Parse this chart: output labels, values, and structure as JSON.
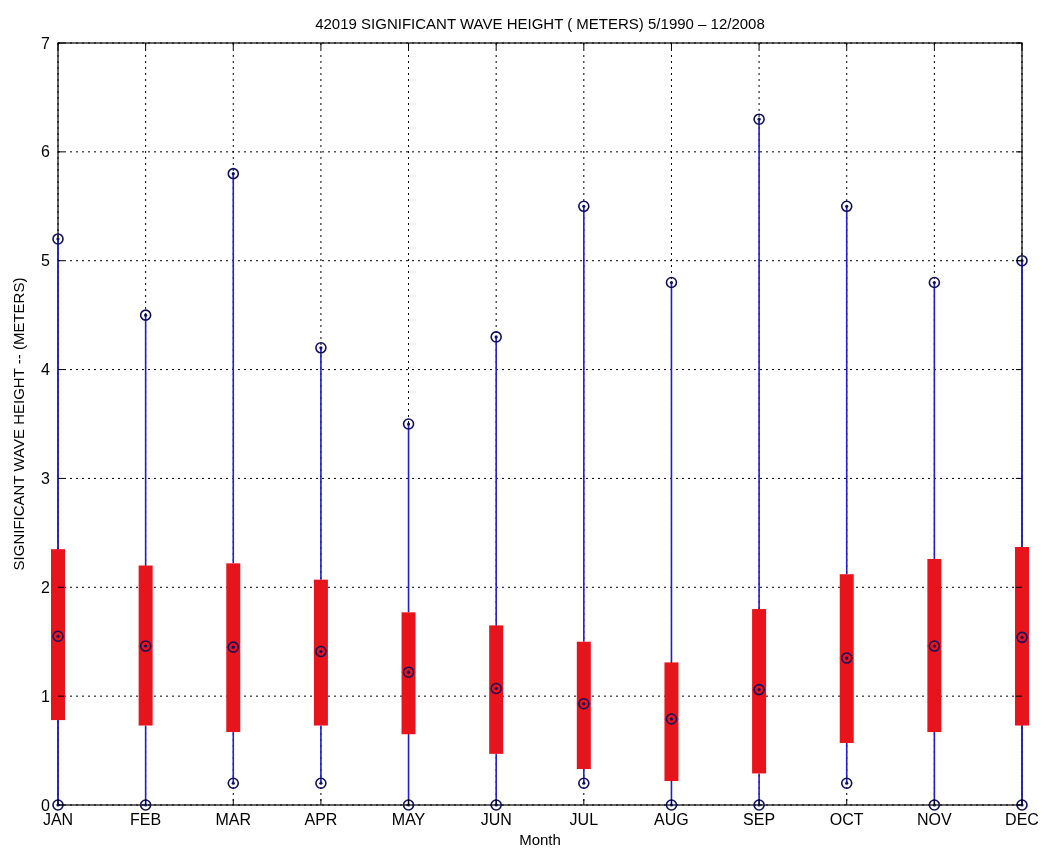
{
  "chart_data": {
    "type": "box",
    "title": "42019  SIGNIFICANT WAVE HEIGHT ( METERS) 5/1990 – 12/2008",
    "xlabel": "Month",
    "ylabel": "SIGNIFICANT WAVE HEIGHT -- (METERS)",
    "categories": [
      "JAN",
      "FEB",
      "MAR",
      "APR",
      "MAY",
      "JUN",
      "JUL",
      "AUG",
      "SEP",
      "OCT",
      "NOV",
      "DEC"
    ],
    "ylim": [
      0,
      7
    ],
    "yticks": [
      0,
      1,
      2,
      3,
      4,
      5,
      6,
      7
    ],
    "grid": true,
    "series": [
      {
        "color": "#e8141c",
        "boxes": [
          {
            "low": 0,
            "q1": 0.78,
            "median": 1.55,
            "q3": 2.35,
            "high": 5.2
          },
          {
            "low": 0,
            "q1": 0.73,
            "median": 1.46,
            "q3": 2.2,
            "high": 4.5
          },
          {
            "low": 0.2,
            "q1": 0.67,
            "median": 1.45,
            "q3": 2.22,
            "high": 5.8
          },
          {
            "low": 0.2,
            "q1": 0.73,
            "median": 1.41,
            "q3": 2.07,
            "high": 4.2
          },
          {
            "low": 0,
            "q1": 0.65,
            "median": 1.22,
            "q3": 1.77,
            "high": 3.5
          },
          {
            "low": 0,
            "q1": 0.47,
            "median": 1.07,
            "q3": 1.65,
            "high": 4.3
          },
          {
            "low": 0.2,
            "q1": 0.33,
            "median": 0.93,
            "q3": 1.5,
            "high": 5.5
          },
          {
            "low": 0,
            "q1": 0.22,
            "median": 0.79,
            "q3": 1.31,
            "high": 4.8
          },
          {
            "low": 0,
            "q1": 0.29,
            "median": 1.06,
            "q3": 1.8,
            "high": 6.3
          },
          {
            "low": 0.2,
            "q1": 0.57,
            "median": 1.35,
            "q3": 2.12,
            "high": 5.5
          },
          {
            "low": 0,
            "q1": 0.67,
            "median": 1.46,
            "q3": 2.26,
            "high": 4.8
          },
          {
            "low": 0,
            "q1": 0.73,
            "median": 1.54,
            "q3": 2.37,
            "high": 5.0
          }
        ]
      },
      {
        "type": "scatter",
        "color": "#101060",
        "marker": "circle",
        "x": [
          "JAN",
          "FEB",
          "MAR",
          "APR",
          "MAY",
          "JUN",
          "JUL",
          "AUG",
          "SEP",
          "OCT",
          "NOV",
          "DEC",
          "JAN",
          "FEB",
          "MAR",
          "APR",
          "MAY",
          "JUN",
          "JUL",
          "AUG",
          "SEP",
          "OCT",
          "NOV",
          "DEC",
          "JAN",
          "FEB",
          "MAR",
          "APR",
          "MAY",
          "JUN",
          "JUL",
          "AUG",
          "SEP",
          "OCT",
          "NOV",
          "DEC"
        ],
        "values": [
          0,
          0,
          0.2,
          0.2,
          0,
          0,
          0.2,
          0,
          0,
          0.2,
          0,
          0,
          1.55,
          1.46,
          1.45,
          1.41,
          1.22,
          1.07,
          0.93,
          0.79,
          1.06,
          1.35,
          1.46,
          1.54,
          5.2,
          4.5,
          5.8,
          4.2,
          3.5,
          4.3,
          5.5,
          4.8,
          6.3,
          5.5,
          4.8,
          5.0
        ]
      }
    ]
  }
}
